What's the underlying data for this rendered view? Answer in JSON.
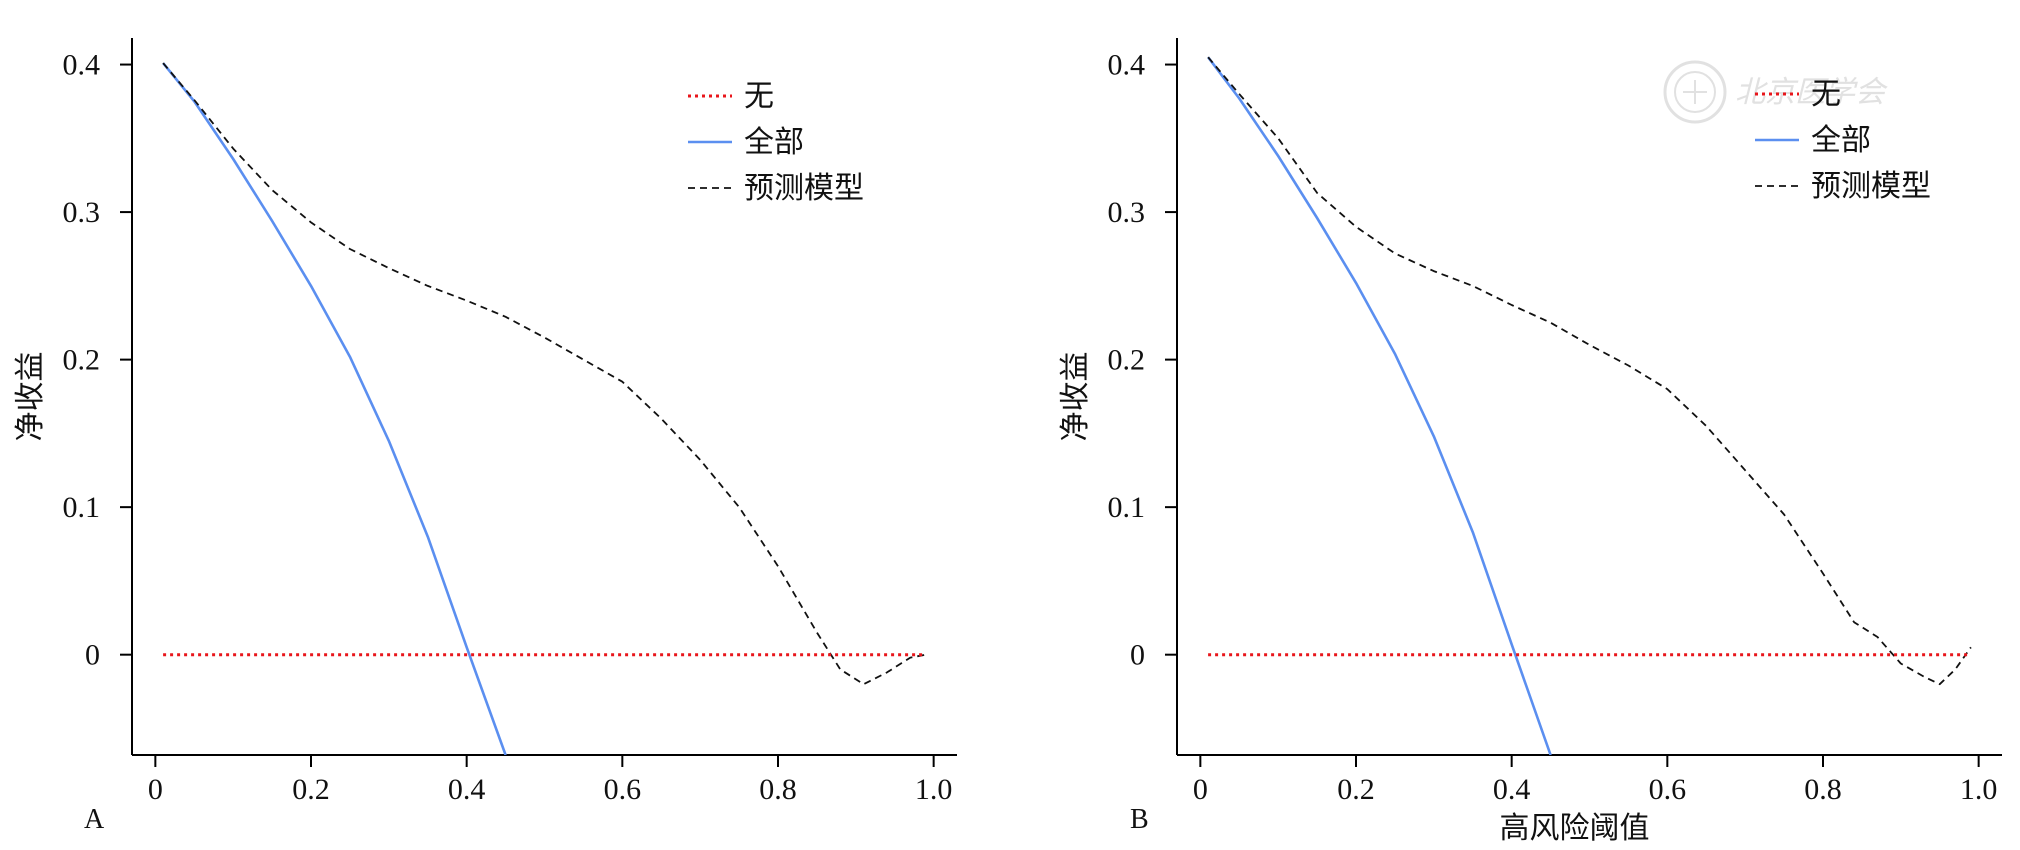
{
  "colors": {
    "none": "#e8161b",
    "all": "#5b8ff0",
    "model": "#111111"
  },
  "watermark": {
    "text": "北京医学会"
  },
  "chart_data": [
    {
      "type": "line",
      "panel_label": "A",
      "xlabel": "",
      "ylabel": "净收益",
      "xlim": [
        -0.03,
        1.03
      ],
      "ylim": [
        -0.068,
        0.418
      ],
      "xticks": [
        0,
        0.2,
        0.4,
        0.6,
        0.8,
        1.0
      ],
      "xtick_labels": [
        "0",
        "0.2",
        "0.4",
        "0.6",
        "0.8",
        "1.0"
      ],
      "yticks": [
        0,
        0.1,
        0.2,
        0.3,
        0.4
      ],
      "ytick_labels": [
        "0",
        "0.1",
        "0.2",
        "0.3",
        "0.4"
      ],
      "legend_position": "top-right",
      "series": [
        {
          "name": "无",
          "key": "none",
          "style": "dotted",
          "x": [
            0.01,
            0.99
          ],
          "y": [
            0,
            0
          ]
        },
        {
          "name": "全部",
          "key": "all",
          "style": "solid",
          "x": [
            0.01,
            0.05,
            0.1,
            0.15,
            0.2,
            0.25,
            0.3,
            0.35,
            0.4,
            0.45
          ],
          "y": [
            0.401,
            0.375,
            0.336,
            0.294,
            0.25,
            0.202,
            0.145,
            0.08,
            0.005,
            -0.068
          ]
        },
        {
          "name": "预测模型",
          "key": "model",
          "style": "dashed",
          "x": [
            0.01,
            0.05,
            0.1,
            0.15,
            0.2,
            0.25,
            0.3,
            0.35,
            0.4,
            0.45,
            0.5,
            0.55,
            0.6,
            0.65,
            0.7,
            0.75,
            0.8,
            0.85,
            0.88,
            0.91,
            0.94,
            0.97,
            0.99
          ],
          "y": [
            0.401,
            0.376,
            0.343,
            0.315,
            0.293,
            0.275,
            0.262,
            0.25,
            0.24,
            0.229,
            0.215,
            0.2,
            0.185,
            0.16,
            0.132,
            0.1,
            0.06,
            0.015,
            -0.01,
            -0.02,
            -0.012,
            -0.002,
            0
          ]
        }
      ]
    },
    {
      "type": "line",
      "panel_label": "B",
      "xlabel": "高风险阈值",
      "ylabel": "净收益",
      "xlim": [
        -0.03,
        1.03
      ],
      "ylim": [
        -0.068,
        0.418
      ],
      "xticks": [
        0,
        0.2,
        0.4,
        0.6,
        0.8,
        1.0
      ],
      "xtick_labels": [
        "0",
        "0.2",
        "0.4",
        "0.6",
        "0.8",
        "1.0"
      ],
      "yticks": [
        0,
        0.1,
        0.2,
        0.3,
        0.4
      ],
      "ytick_labels": [
        "0",
        "0.1",
        "0.2",
        "0.3",
        "0.4"
      ],
      "legend_position": "top-right",
      "series": [
        {
          "name": "无",
          "key": "none",
          "style": "dotted",
          "x": [
            0.01,
            0.99
          ],
          "y": [
            0,
            0
          ]
        },
        {
          "name": "全部",
          "key": "all",
          "style": "solid",
          "x": [
            0.01,
            0.05,
            0.1,
            0.15,
            0.2,
            0.25,
            0.3,
            0.35,
            0.4,
            0.45
          ],
          "y": [
            0.405,
            0.377,
            0.338,
            0.296,
            0.252,
            0.204,
            0.148,
            0.083,
            0.007,
            -0.068
          ]
        },
        {
          "name": "预测模型",
          "key": "model",
          "style": "dashed",
          "x": [
            0.01,
            0.05,
            0.1,
            0.15,
            0.2,
            0.25,
            0.3,
            0.35,
            0.4,
            0.45,
            0.5,
            0.55,
            0.6,
            0.65,
            0.7,
            0.75,
            0.8,
            0.84,
            0.87,
            0.9,
            0.93,
            0.95,
            0.97,
            0.99
          ],
          "y": [
            0.405,
            0.38,
            0.35,
            0.313,
            0.29,
            0.272,
            0.26,
            0.25,
            0.237,
            0.225,
            0.21,
            0.196,
            0.18,
            0.155,
            0.125,
            0.095,
            0.055,
            0.022,
            0.012,
            -0.006,
            -0.015,
            -0.02,
            -0.01,
            0.005
          ]
        }
      ]
    }
  ]
}
